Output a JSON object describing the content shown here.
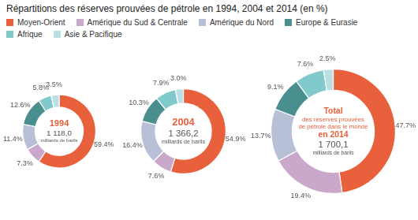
{
  "chart_data": [
    {
      "type": "doughnut",
      "title": "Répartitions des réserves prouvées de pétrole en 1994, 2004 et 2014 (en %)",
      "legend": "upper left",
      "categories": [
        "Moyen-Orient",
        "Amérique du Sud & Centrale",
        "Amérique du Nord",
        "Europe & Eurasie",
        "Afrique",
        "Asie & Pacifique"
      ],
      "colors": [
        "#E8603C",
        "#C9A8CB",
        "#B8C0D8",
        "#4A8F8F",
        "#80CACB",
        "#BAE0E2"
      ],
      "values": [
        59.4,
        7.3,
        11.4,
        12.6,
        5.8,
        3.5
      ],
      "value_labels": [
        "59.4%",
        "7.3%",
        "11.4%",
        "12.6%",
        "5.8%",
        "3.5%"
      ],
      "data_labels": true,
      "annotations": [
        {
          "text": "1994",
          "color": "#E8603C"
        },
        {
          "text": "1 118,0",
          "color": "#555555"
        },
        {
          "text": "milliards de barils",
          "color": "#555555"
        }
      ]
    },
    {
      "type": "doughnut",
      "categories": [
        "Moyen-Orient",
        "Amérique du Sud & Centrale",
        "Amérique du Nord",
        "Europe & Eurasie",
        "Afrique",
        "Asie & Pacifique"
      ],
      "colors": [
        "#E8603C",
        "#C9A8CB",
        "#B8C0D8",
        "#4A8F8F",
        "#80CACB",
        "#BAE0E2"
      ],
      "values": [
        54.9,
        7.6,
        16.4,
        10.3,
        7.9,
        3.0
      ],
      "value_labels": [
        "54.9%",
        "7.6%",
        "16.4%",
        "10.3%",
        "7.9%",
        "3.0%"
      ],
      "data_labels": true,
      "annotations": [
        {
          "text": "2004",
          "color": "#E8603C"
        },
        {
          "text": "1 366,2",
          "color": "#555555"
        },
        {
          "text": "milliards de barils",
          "color": "#555555"
        }
      ]
    },
    {
      "type": "doughnut",
      "categories": [
        "Moyen-Orient",
        "Amérique du Sud & Centrale",
        "Amérique du Nord",
        "Europe & Eurasie",
        "Afrique",
        "Asie & Pacifique"
      ],
      "colors": [
        "#E8603C",
        "#C9A8CB",
        "#B8C0D8",
        "#4A8F8F",
        "#80CACB",
        "#BAE0E2"
      ],
      "values": [
        47.7,
        19.4,
        13.7,
        9.1,
        7.6,
        2.5
      ],
      "value_labels": [
        "47.7%",
        "19.4%",
        "13.7%",
        "9.1%",
        "7.6%",
        "2.5%"
      ],
      "data_labels": true,
      "annotations": [
        {
          "text": "Total",
          "color": "#E8603C"
        },
        {
          "text": "des réserves prouvées",
          "color": "#E8603C"
        },
        {
          "text": "de pétrole dans le monde",
          "color": "#E8603C"
        },
        {
          "text": "en 2014",
          "color": "#E8603C"
        },
        {
          "text": "1 700,1",
          "color": "#555555"
        },
        {
          "text": "milliards de barils",
          "color": "#555555"
        }
      ]
    }
  ]
}
